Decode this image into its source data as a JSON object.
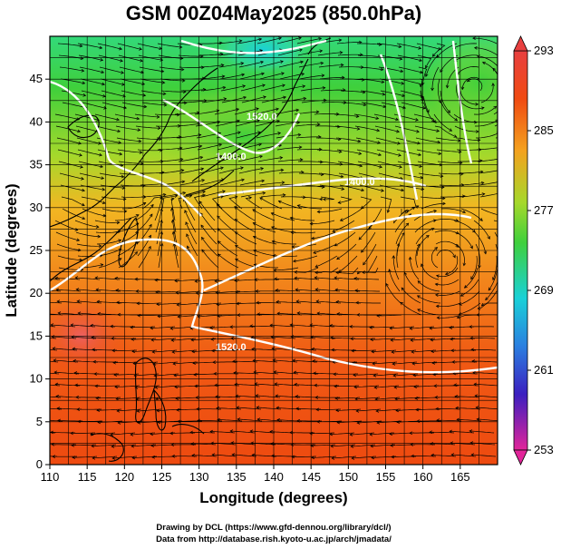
{
  "title": "GSM 00Z04May2025 (850.0hPa)",
  "x_axis": {
    "label": "Longitude (degrees)",
    "ticks": [
      "110",
      "115",
      "120",
      "125",
      "130",
      "135",
      "140",
      "145",
      "150",
      "155",
      "160",
      "165"
    ],
    "range": [
      110,
      170
    ]
  },
  "y_axis": {
    "label": "Latitude  (degrees)",
    "ticks": [
      "0",
      "5",
      "10",
      "15",
      "20",
      "25",
      "30",
      "35",
      "40",
      "45"
    ],
    "range": [
      0,
      50
    ]
  },
  "colorbar": {
    "labels": [
      "293",
      "285",
      "277",
      "269",
      "261",
      "253"
    ],
    "range": [
      253,
      293
    ],
    "colors": [
      "#e2259a",
      "#3b1fc0",
      "#2b7fe0",
      "#19d1d8",
      "#3fd03c",
      "#a6d82b",
      "#f4a21f",
      "#f04a12",
      "#e84040"
    ]
  },
  "contour_labels": [
    {
      "text": "1400.0"
    },
    {
      "text": "1400.0"
    },
    {
      "text": "1520.0"
    },
    {
      "text": "1520.0"
    }
  ],
  "credits": {
    "line1": "Drawing by DCL (https://www.gfd-dennou.org/library/dcl/)",
    "line2": "Data from http://database.rish.kyoto-u.ac.jp/arch/jmadata/"
  }
}
